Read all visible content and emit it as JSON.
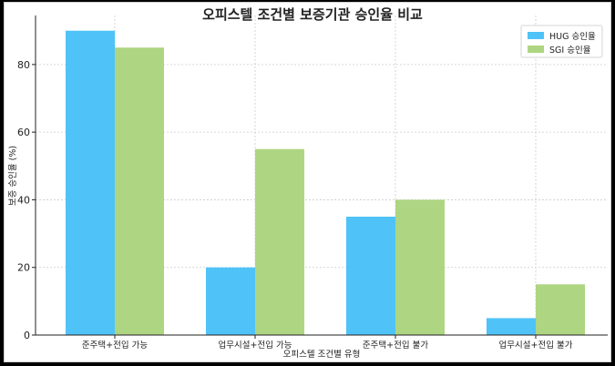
{
  "chart_data": {
    "type": "bar",
    "title": "오피스텔 조건별 보증기관 승인율 비교",
    "xlabel": "오피스텔 조건별 유형",
    "ylabel": "보증 승인율 (%)",
    "categories": [
      "준주택+전입 가능",
      "업무시설+전입 가능",
      "준주택+전입 불가",
      "업무시설+전입 불가"
    ],
    "series": [
      {
        "name": "HUG 승인율",
        "values": [
          90,
          20,
          35,
          5
        ],
        "color": "#4fc3f7"
      },
      {
        "name": "SGI 승인율",
        "values": [
          85,
          55,
          40,
          15
        ],
        "color": "#aed581"
      }
    ],
    "ylim": [
      0,
      94.5
    ],
    "yticks": [
      0,
      20,
      40,
      60,
      80
    ],
    "grid": true,
    "legend_position": "top-right"
  }
}
